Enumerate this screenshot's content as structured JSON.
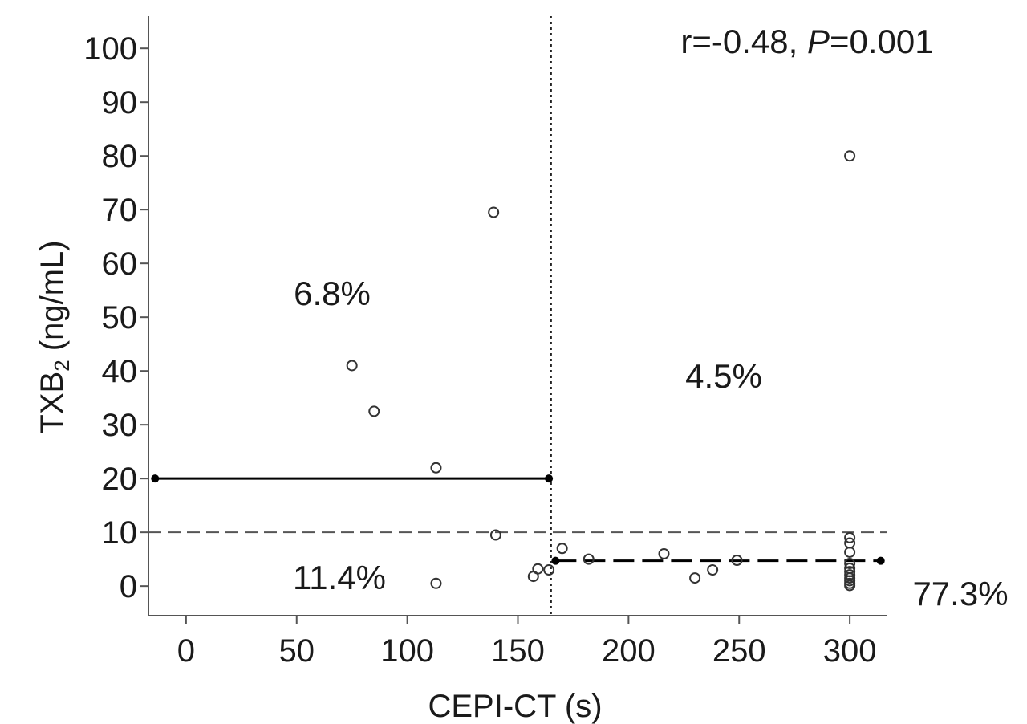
{
  "chart_data": {
    "type": "scatter",
    "xlabel": "CEPI-CT (s)",
    "ylabel_main": "TXB",
    "ylabel_sub": "2",
    "ylabel_unit": " (ng/mL)",
    "xlim": [
      -17,
      317
    ],
    "ylim": [
      -5.5,
      106
    ],
    "xticks": [
      0,
      50,
      100,
      150,
      200,
      250,
      300
    ],
    "yticks": [
      0,
      10,
      20,
      30,
      40,
      50,
      60,
      70,
      80,
      90,
      100
    ],
    "points": [
      {
        "x": 75,
        "y": 41
      },
      {
        "x": 85,
        "y": 32.5
      },
      {
        "x": 113,
        "y": 22
      },
      {
        "x": 113,
        "y": 0.5
      },
      {
        "x": 139,
        "y": 69.5
      },
      {
        "x": 140,
        "y": 9.5
      },
      {
        "x": 157,
        "y": 1.8
      },
      {
        "x": 159,
        "y": 3.2
      },
      {
        "x": 164,
        "y": 3.0
      },
      {
        "x": 170,
        "y": 7.0
      },
      {
        "x": 182,
        "y": 5.0
      },
      {
        "x": 216,
        "y": 6.0
      },
      {
        "x": 230,
        "y": 1.5
      },
      {
        "x": 238,
        "y": 3.0
      },
      {
        "x": 249,
        "y": 4.8
      },
      {
        "x": 300,
        "y": 80
      },
      {
        "x": 300,
        "y": 9.0
      },
      {
        "x": 300,
        "y": 8.0
      },
      {
        "x": 300,
        "y": 6.3
      },
      {
        "x": 300,
        "y": 4.2
      },
      {
        "x": 300,
        "y": 3.3
      },
      {
        "x": 300,
        "y": 2.7
      },
      {
        "x": 300,
        "y": 2.1
      },
      {
        "x": 300,
        "y": 1.5
      },
      {
        "x": 300,
        "y": 1.0
      },
      {
        "x": 300,
        "y": 0.5
      },
      {
        "x": 300,
        "y": 0.1
      }
    ],
    "reference_lines": {
      "vertical_x": 165,
      "horizontal_y": 10
    },
    "segments": [
      {
        "x1": -14,
        "x2": 164,
        "y": 20,
        "style": "solid"
      },
      {
        "x1": 167,
        "x2": 314,
        "y": 4.7,
        "style": "dashed"
      }
    ],
    "annotations": {
      "stats": "r=-0.48, ",
      "p_label": "P",
      "p_value": "=0.001",
      "q_top_left": "6.8%",
      "q_top_right": "4.5%",
      "q_bottom_left": "11.4%",
      "q_bottom_right": "77.3%"
    }
  }
}
